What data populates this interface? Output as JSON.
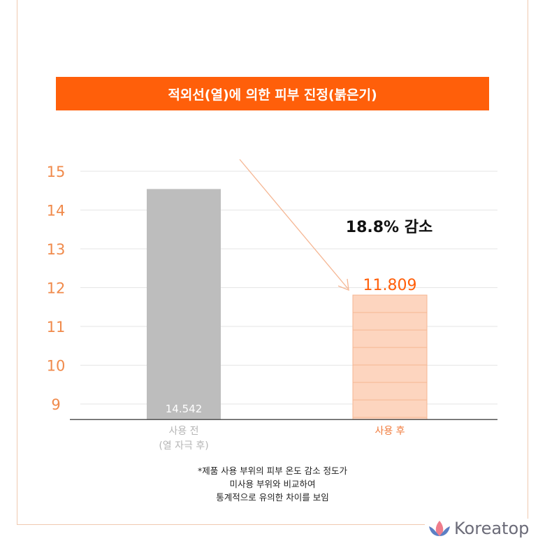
{
  "chart_data": {
    "type": "bar",
    "title": "적외선(열)에 의한 피부 진정(붉은기)",
    "categories": [
      "사용 전\n(열 자극 후)",
      "사용 후"
    ],
    "category_lines": [
      [
        "사용 전",
        "(열 자극 후)"
      ],
      [
        "사용 후"
      ]
    ],
    "values": [
      14.542,
      11.809
    ],
    "value_labels": [
      "14.542",
      "11.809"
    ],
    "yticks": [
      9,
      10,
      11,
      12,
      13,
      14,
      15
    ],
    "ylim": [
      8.6,
      15.3
    ],
    "grid": true,
    "annotation": "18.8% 감소",
    "colors": {
      "before": "#bdbdbd",
      "after": "#fdd5bf",
      "accent": "#ff5f0a",
      "axis_text": "#f08a4b"
    }
  },
  "footnote": [
    "*제품 사용 부위의 피부 온도 감소 정도가",
    "미사용 부위와 비교하여",
    "통계적으로 유의한 차이를 보임"
  ],
  "logo": "Koreatop"
}
